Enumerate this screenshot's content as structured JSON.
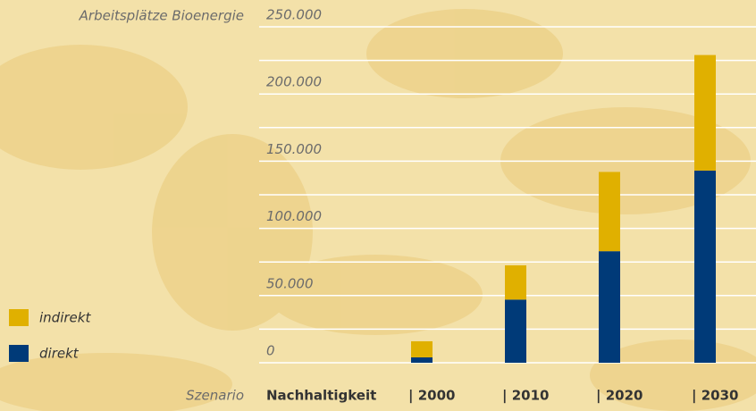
{
  "chart_data": {
    "type": "stacked_bar",
    "y_label": "Arbeitsplätze Bioenergie",
    "x_label": "Szenario",
    "scenario": "Nachhaltigkeit",
    "categories": [
      "| 2000",
      "| 2010",
      "| 2020",
      "| 2030"
    ],
    "series": [
      {
        "name": "direkt",
        "color": "#003a78",
        "values": [
          4000,
          47000,
          83000,
          143000
        ]
      },
      {
        "name": "indirekt",
        "color": "#e0b000",
        "values": [
          12000,
          25500,
          59000,
          86000
        ]
      }
    ],
    "ylim": [
      0,
      250000
    ],
    "yticks": [
      0,
      {
        "value": 50000,
        "label": "50.000"
      },
      {
        "value": 100000,
        "label": "100.000"
      },
      {
        "value": 150000,
        "label": "150.000"
      },
      {
        "value": 200000,
        "label": "200.000"
      },
      {
        "value": 250000,
        "label": "250.000"
      }
    ],
    "grid": true
  }
}
